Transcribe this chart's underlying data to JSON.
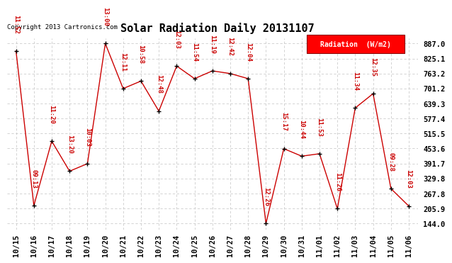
{
  "title": "Solar Radiation Daily 20131107",
  "copyright": "Copyright 2013 Cartronics.com",
  "legend_label": "Radiation  (W/m2)",
  "x_labels": [
    "10/15",
    "10/16",
    "10/17",
    "10/18",
    "10/19",
    "10/20",
    "10/21",
    "10/22",
    "10/23",
    "10/24",
    "10/25",
    "10/26",
    "10/27",
    "10/28",
    "10/29",
    "10/30",
    "10/31",
    "11/01",
    "11/02",
    "11/03",
    "11/04",
    "11/05",
    "11/06"
  ],
  "y_values": [
    856,
    218,
    484,
    360,
    391,
    887,
    701,
    732,
    608,
    794,
    742,
    774,
    763,
    742,
    144,
    453,
    422,
    432,
    205,
    621,
    680,
    288,
    216
  ],
  "time_labels": [
    "11:52",
    "09:13",
    "11:20",
    "13:20",
    "10:03",
    "13:00",
    "12:11",
    "10:58",
    "12:48",
    "12:03",
    "11:54",
    "11:19",
    "12:42",
    "12:04",
    "12:26",
    "15:17",
    "10:44",
    "11:53",
    "11:26",
    "11:34",
    "12:35",
    "09:28",
    "12:03"
  ],
  "y_ticks": [
    144.0,
    205.9,
    267.8,
    329.8,
    391.7,
    453.6,
    515.5,
    577.4,
    639.3,
    701.2,
    763.2,
    825.1,
    887.0
  ],
  "y_tick_labels": [
    "144.0",
    "205.9",
    "267.8",
    "329.8",
    "391.7",
    "453.6",
    "515.5",
    "577.4",
    "639.3",
    "701.2",
    "763.2",
    "825.1",
    "887.0"
  ],
  "line_color": "#cc0000",
  "marker_color": "#000000",
  "background_color": "#ffffff",
  "grid_color": "#cccccc",
  "title_fontsize": 11,
  "label_fontsize": 6.5,
  "tick_fontsize": 7.5,
  "copyright_fontsize": 6.5,
  "ylim_min": 120,
  "ylim_max": 910
}
